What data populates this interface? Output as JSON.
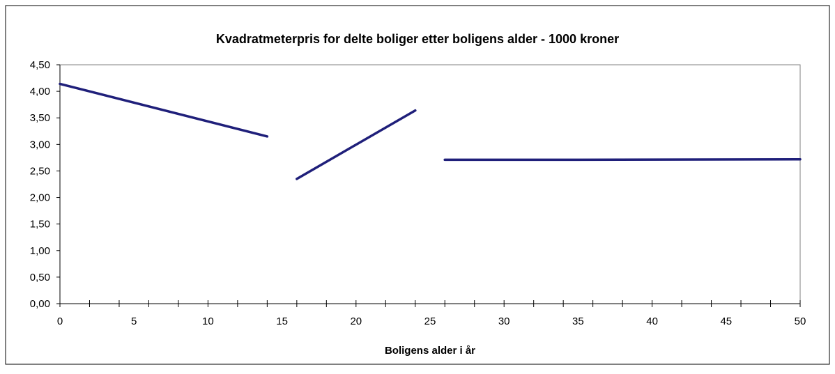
{
  "chart_data": {
    "type": "line",
    "title": "Kvadratmeterpris for delte boliger etter boligens alder - 1000 kroner",
    "xlabel": "Boligens alder i år",
    "ylabel": "",
    "xlim": [
      0,
      50
    ],
    "ylim": [
      0,
      4.5
    ],
    "x_ticks": [
      "0",
      "5",
      "10",
      "15",
      "20",
      "25",
      "30",
      "35",
      "40",
      "45",
      "50"
    ],
    "y_ticks": [
      "0,00",
      "0,50",
      "1,00",
      "1,50",
      "2,00",
      "2,50",
      "3,00",
      "3,50",
      "4,00",
      "4,50"
    ],
    "x_minor_step": 1,
    "grid": false,
    "legend": "none",
    "line_color": "#1f1f7a",
    "segments": [
      {
        "points": [
          [
            0,
            4.14
          ],
          [
            14,
            3.15
          ]
        ]
      },
      {
        "points": [
          [
            16,
            2.35
          ],
          [
            24,
            3.64
          ]
        ]
      },
      {
        "points": [
          [
            26,
            2.71
          ],
          [
            35,
            2.71
          ],
          [
            50,
            2.72
          ]
        ]
      }
    ]
  }
}
